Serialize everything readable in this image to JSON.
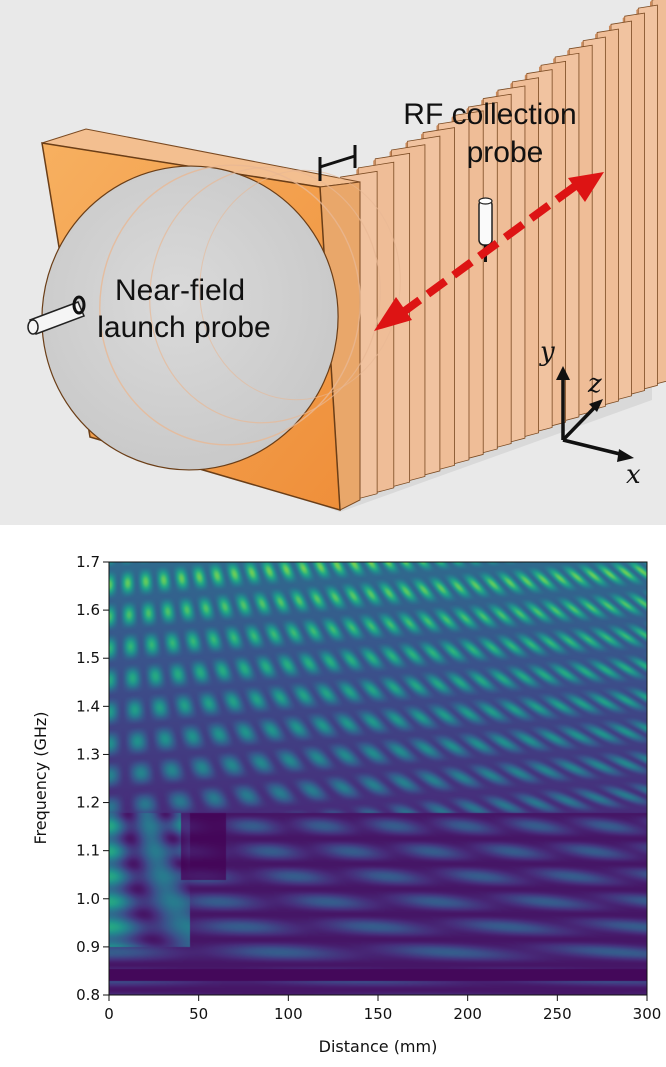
{
  "diagram": {
    "launch_probe_label": [
      "Near-field",
      "launch probe"
    ],
    "collection_probe_label": [
      "RF collection",
      "probe"
    ],
    "axes": {
      "x": "x",
      "y": "y",
      "z": "z"
    },
    "colors": {
      "background": "#e9e9e9",
      "front_plate": "#f4a04f",
      "stack_plate": "#f1c3a0",
      "arrow": "#dd1414"
    }
  },
  "chart_data": {
    "type": "heatmap",
    "xlabel": "Distance (mm)",
    "ylabel": "Frequency (GHz)",
    "xlim": [
      0,
      300
    ],
    "ylim": [
      0.8,
      1.7
    ],
    "xticks": [
      "0",
      "50",
      "100",
      "150",
      "200",
      "250",
      "300"
    ],
    "yticks": [
      "0.8",
      "0.9",
      "1.0",
      "1.1",
      "1.2",
      "1.3",
      "1.4",
      "1.5",
      "1.6",
      "1.7"
    ],
    "colormap": "viridis"
  }
}
